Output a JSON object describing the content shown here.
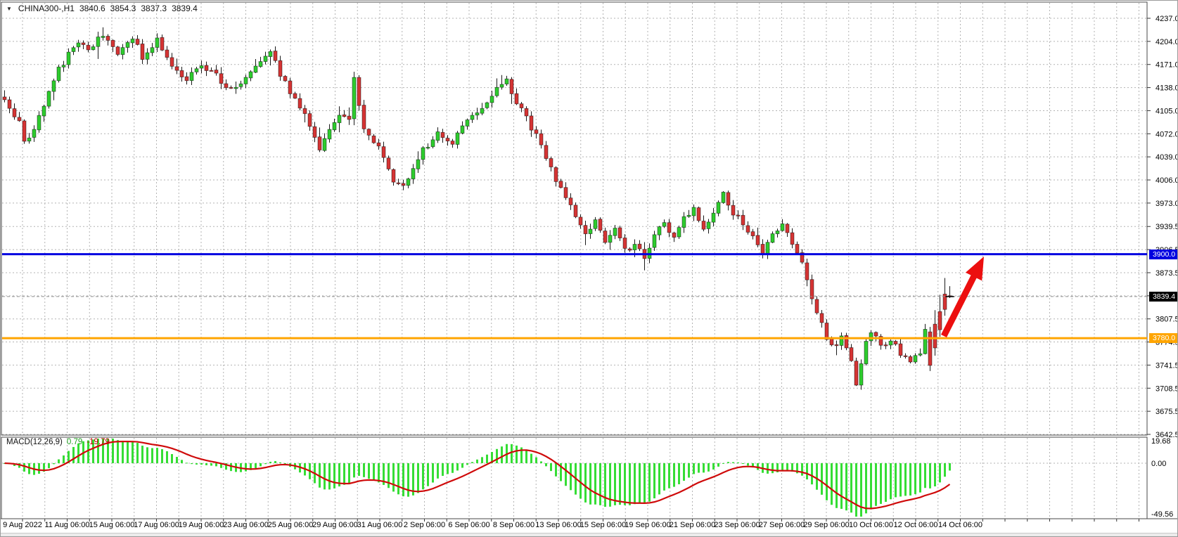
{
  "header": {
    "dropdown_icon": "▼",
    "title": "CHINA300-,H1",
    "open": "3840.6",
    "high": "3854.3",
    "low": "3837.3",
    "close": "3839.4"
  },
  "levels": {
    "resistance": {
      "label": "3900.0",
      "price": 3900.0,
      "color": "#0202e0"
    },
    "support": {
      "label": "3780.0",
      "price": 3780.0,
      "color": "#ffa500"
    },
    "current": {
      "label": "3839.4",
      "price": 3839.4,
      "color": "#909090"
    }
  },
  "macd": {
    "name": "MACD(12,26,9)",
    "main_value": "0.79",
    "signal_value": "-19.79",
    "axis": {
      "max": "19.68",
      "zero": "0.00",
      "min": "-49.56"
    },
    "histogram_color": "#35dd35",
    "signal_color": "#cf0a0a",
    "axis_max": 19.68,
    "axis_min": -49.56
  },
  "annotation": {
    "arrow": {
      "color": "#ec0f0f",
      "tail": [
        1341,
        477
      ],
      "tip": [
        1398,
        364
      ]
    }
  },
  "chart_data": {
    "type": "candlestick",
    "symbol": "CHINA300-",
    "timeframe": "H1",
    "title": "CHINA300-,H1  3840.6 3854.3 3837.3 3839.4",
    "price_ticks": [
      4237.0,
      4204.0,
      4171.0,
      4138.0,
      4105.0,
      4072.0,
      4039.0,
      4006.0,
      3973.0,
      3939.5,
      3906.5,
      3873.5,
      3840.5,
      3807.5,
      3774.5,
      3741.5,
      3708.5,
      3675.5,
      3642.5
    ],
    "price_tick_labels": [
      "4237.0",
      "4204.0",
      "4171.0",
      "4138.0",
      "4105.0",
      "4072.0",
      "4039.0",
      "4006.0",
      "3973.0",
      "3939.5",
      "3906.5",
      "3873.5",
      "3840.5",
      "3807.5",
      "3774.5",
      "3741.5",
      "3708.5",
      "3675.5",
      "3642.5"
    ],
    "ylim": [
      3642.5,
      4237.0
    ],
    "time_labels": [
      "9 Aug 2022",
      "11 Aug 06:00",
      "15 Aug 06:00",
      "17 Aug 06:00",
      "19 Aug 06:00",
      "23 Aug 06:00",
      "25 Aug 06:00",
      "29 Aug 06:00",
      "31 Aug 06:00",
      "2 Sep 06:00",
      "6 Sep 06:00",
      "8 Sep 06:00",
      "13 Sep 06:00",
      "15 Sep 06:00",
      "19 Sep 06:00",
      "21 Sep 06:00",
      "23 Sep 06:00",
      "27 Sep 06:00",
      "29 Sep 06:00",
      "10 Oct 06:00",
      "12 Oct 06:00",
      "14 Oct 06:00"
    ],
    "grid": true,
    "n_bars": 193,
    "bull_color": "#2ecc2e",
    "bear_color": "#d53434",
    "price_waypoints_approx": [
      [
        0,
        4118
      ],
      [
        3,
        4088
      ],
      [
        4,
        4062
      ],
      [
        6,
        4078
      ],
      [
        8,
        4110
      ],
      [
        10,
        4152
      ],
      [
        13,
        4185
      ],
      [
        15,
        4205
      ],
      [
        17,
        4195
      ],
      [
        20,
        4212
      ],
      [
        23,
        4188
      ],
      [
        26,
        4208
      ],
      [
        28,
        4182
      ],
      [
        31,
        4205
      ],
      [
        34,
        4168
      ],
      [
        37,
        4150
      ],
      [
        40,
        4172
      ],
      [
        43,
        4155
      ],
      [
        46,
        4135
      ],
      [
        49,
        4152
      ],
      [
        52,
        4178
      ],
      [
        54,
        4192
      ],
      [
        56,
        4155
      ],
      [
        59,
        4120
      ],
      [
        62,
        4085
      ],
      [
        64,
        4052
      ],
      [
        66,
        4075
      ],
      [
        68,
        4098
      ],
      [
        70,
        4090
      ],
      [
        71,
        4155
      ],
      [
        72,
        4110
      ],
      [
        73,
        4080
      ],
      [
        75,
        4062
      ],
      [
        77,
        4040
      ],
      [
        79,
        4006
      ],
      [
        81,
        3998
      ],
      [
        83,
        4022
      ],
      [
        85,
        4048
      ],
      [
        88,
        4072
      ],
      [
        91,
        4060
      ],
      [
        94,
        4092
      ],
      [
        97,
        4112
      ],
      [
        100,
        4138
      ],
      [
        102,
        4148
      ],
      [
        104,
        4118
      ],
      [
        106,
        4095
      ],
      [
        108,
        4068
      ],
      [
        110,
        4038
      ],
      [
        112,
        4008
      ],
      [
        114,
        3978
      ],
      [
        116,
        3956
      ],
      [
        118,
        3928
      ],
      [
        120,
        3946
      ],
      [
        122,
        3920
      ],
      [
        124,
        3936
      ],
      [
        126,
        3904
      ],
      [
        128,
        3914
      ],
      [
        130,
        3896
      ],
      [
        132,
        3926
      ],
      [
        134,
        3948
      ],
      [
        136,
        3922
      ],
      [
        138,
        3950
      ],
      [
        140,
        3964
      ],
      [
        142,
        3940
      ],
      [
        144,
        3958
      ],
      [
        146,
        3986
      ],
      [
        148,
        3960
      ],
      [
        150,
        3942
      ],
      [
        152,
        3928
      ],
      [
        154,
        3904
      ],
      [
        156,
        3930
      ],
      [
        158,
        3942
      ],
      [
        160,
        3916
      ],
      [
        162,
        3888
      ],
      [
        164,
        3840
      ],
      [
        166,
        3798
      ],
      [
        168,
        3766
      ],
      [
        170,
        3780
      ],
      [
        172,
        3748
      ],
      [
        173,
        3710
      ],
      [
        174,
        3742
      ],
      [
        175,
        3774
      ],
      [
        176,
        3792
      ],
      [
        177,
        3780
      ],
      [
        178,
        3768
      ],
      [
        180,
        3780
      ],
      [
        182,
        3758
      ],
      [
        184,
        3742
      ],
      [
        186,
        3760
      ],
      [
        187,
        3790
      ]
    ],
    "final_bars": [
      {
        "o": 3789.0,
        "h": 3796.0,
        "l": 3733.0,
        "c": 3741.0
      },
      {
        "o": 3800.0,
        "h": 3820.0,
        "l": 3755.0,
        "c": 3766.0
      },
      {
        "o": 3818.0,
        "h": 3842.0,
        "l": 3782.0,
        "c": 3792.0
      },
      {
        "o": 3843.0,
        "h": 3866.0,
        "l": 3812.0,
        "c": 3821.0
      },
      {
        "o": 3840.6,
        "h": 3854.3,
        "l": 3837.3,
        "c": 3839.4
      }
    ]
  }
}
